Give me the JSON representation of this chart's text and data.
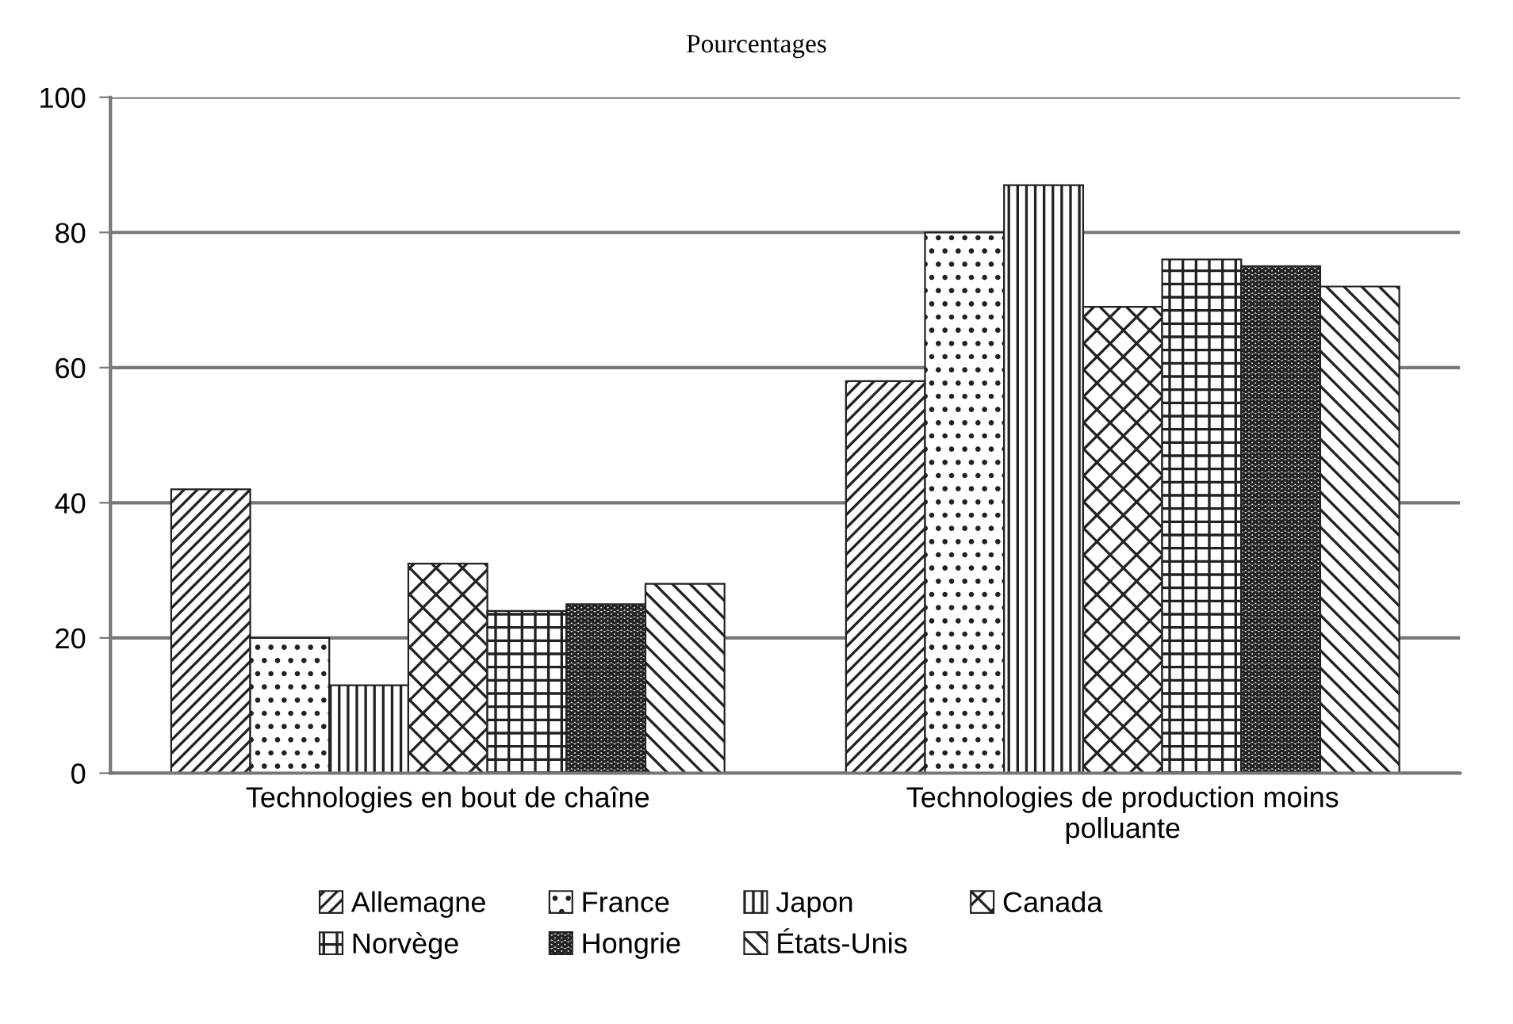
{
  "chart_data": {
    "type": "bar",
    "title": "Pourcentages",
    "categories": [
      "Technologies en bout de chaîne",
      "Technologies de production moins polluante"
    ],
    "series": [
      {
        "name": "Allemagne",
        "color": "#222222",
        "values": [
          42,
          58
        ]
      },
      {
        "name": "France",
        "color": "#222222",
        "values": [
          20,
          80
        ]
      },
      {
        "name": "Japon",
        "color": "#222222",
        "values": [
          13,
          87
        ]
      },
      {
        "name": "Canada",
        "color": "#222222",
        "values": [
          31,
          69
        ]
      },
      {
        "name": "Norvège",
        "color": "#222222",
        "values": [
          24,
          76
        ]
      },
      {
        "name": "Hongrie",
        "color": "#222222",
        "values": [
          25,
          75
        ]
      },
      {
        "name": "États-Unis",
        "color": "#222222",
        "values": [
          28,
          72
        ]
      }
    ],
    "ylim": [
      0,
      100
    ],
    "yticks": [
      0,
      20,
      40,
      60,
      80,
      100
    ],
    "grid": "y",
    "legend": "bottom"
  }
}
